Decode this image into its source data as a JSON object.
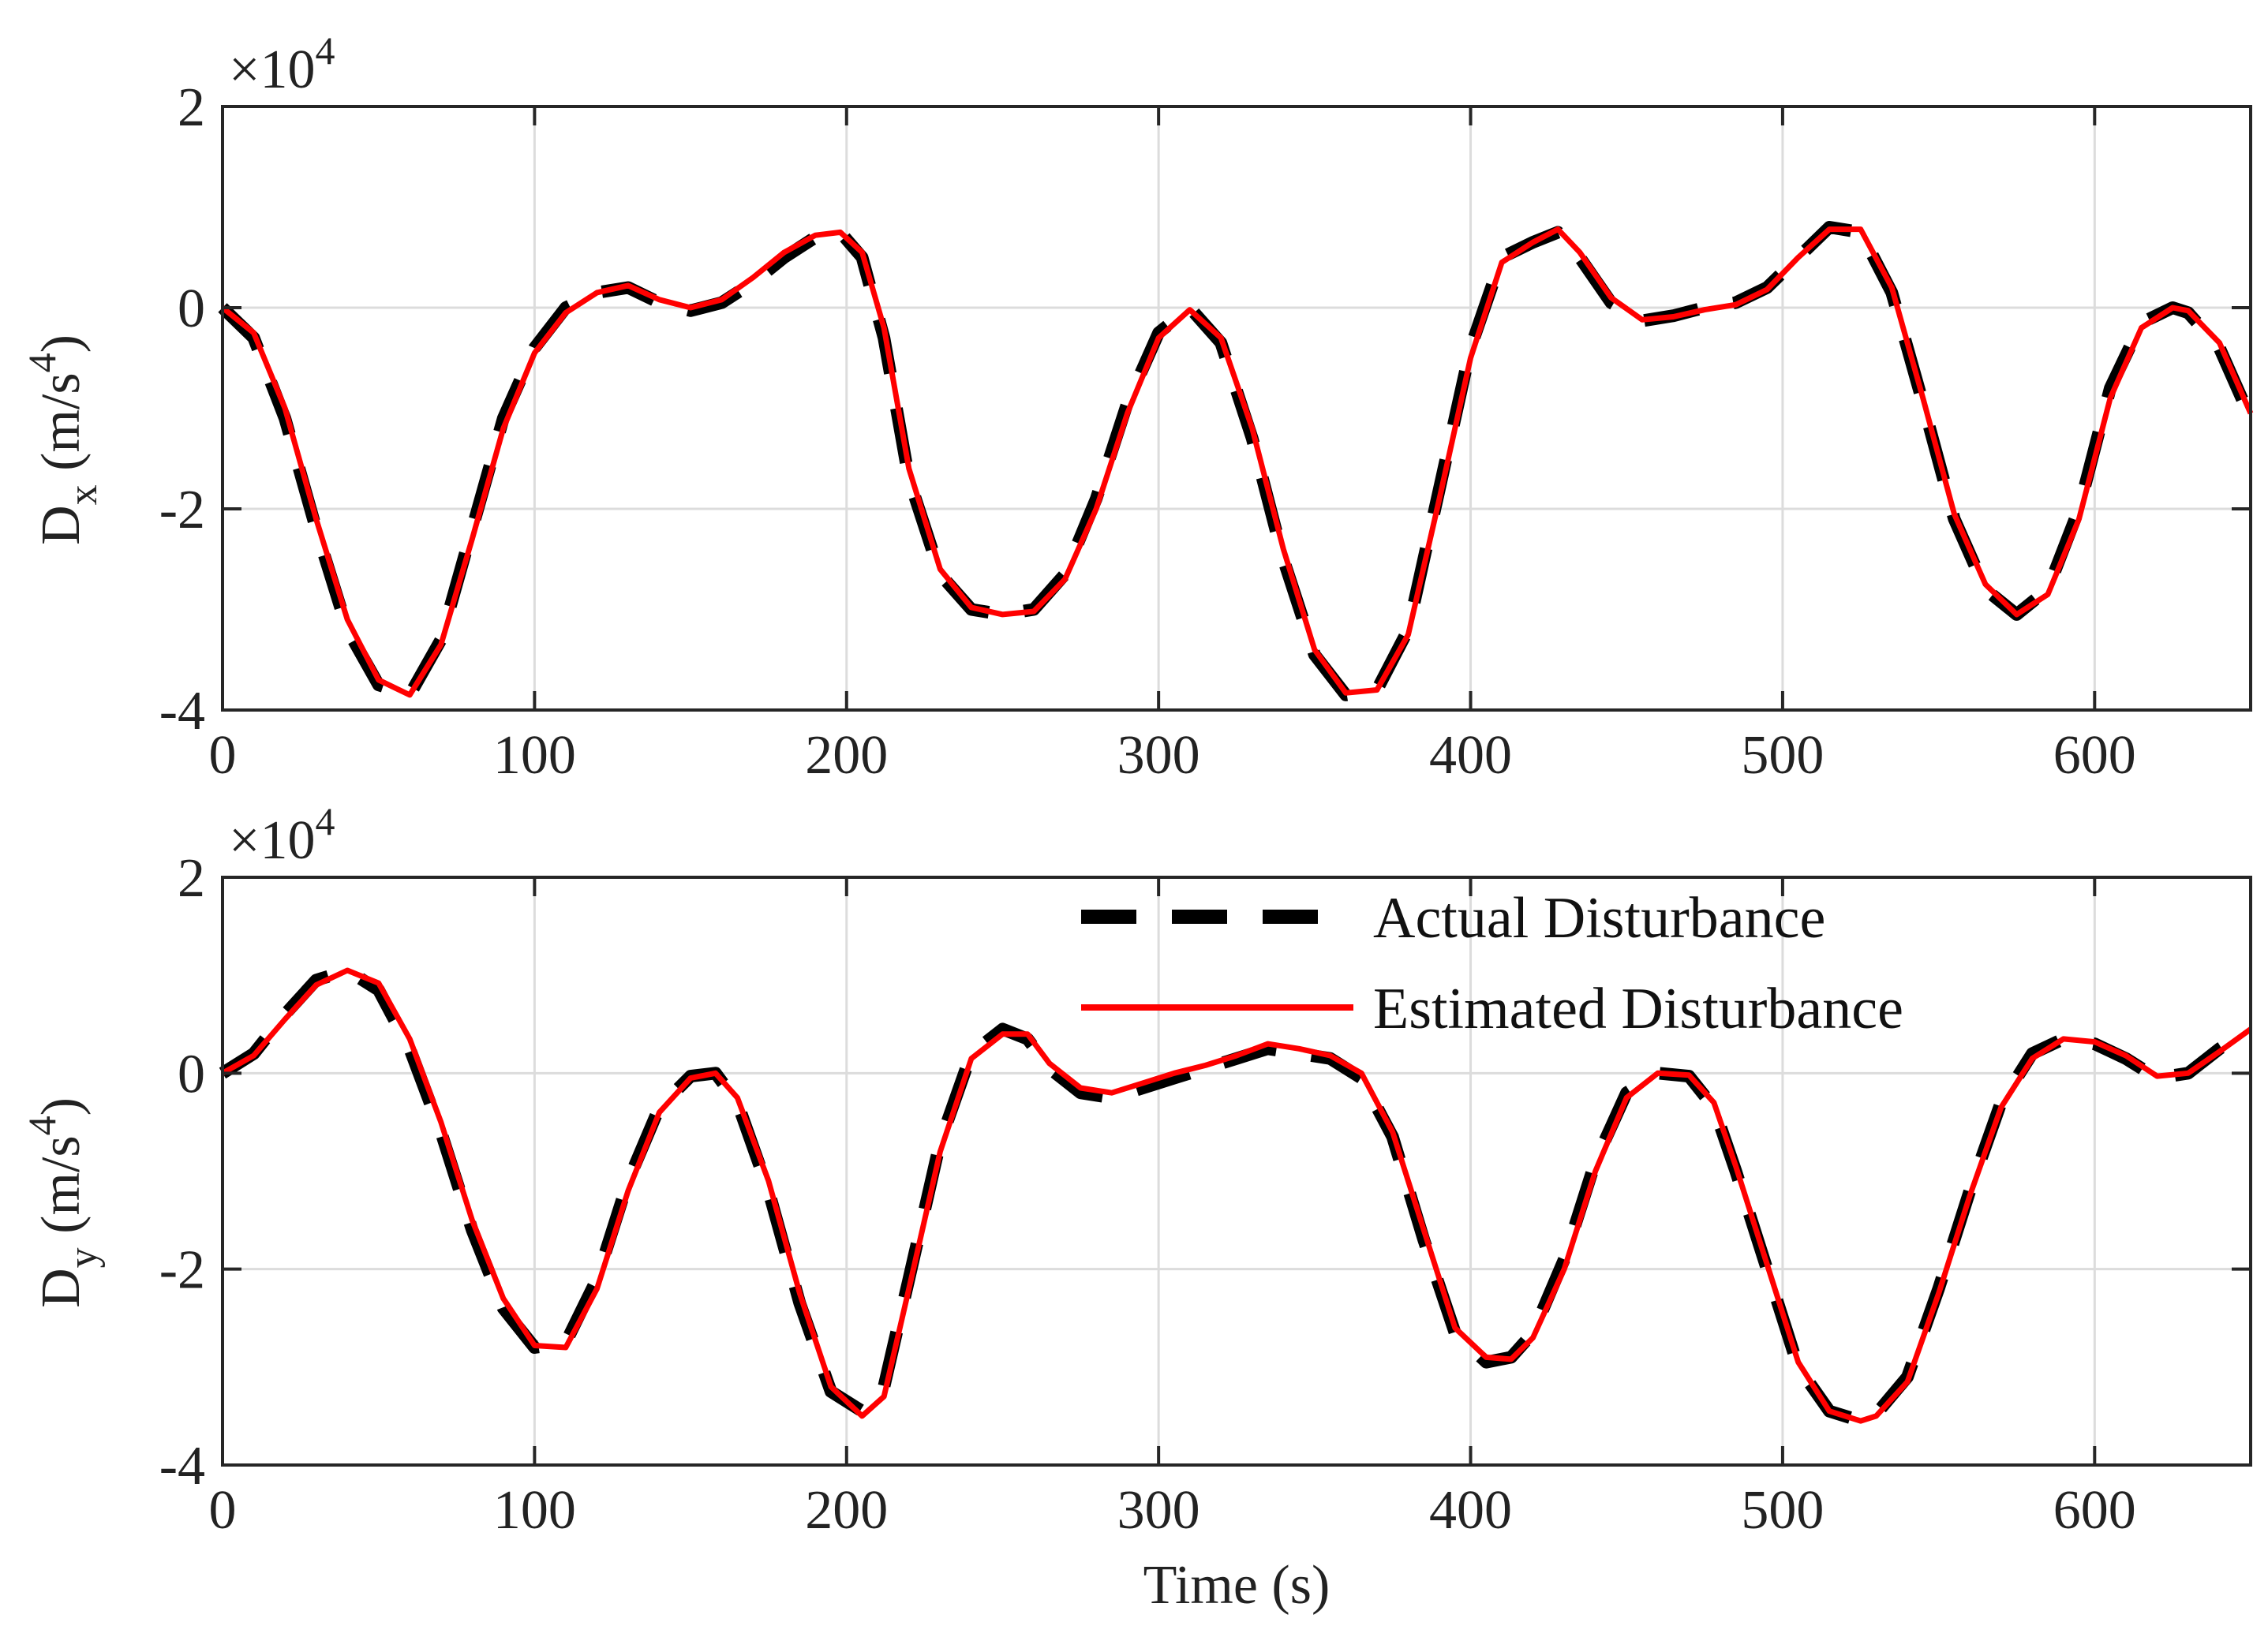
{
  "chart_data": [
    {
      "type": "line",
      "id": "dx",
      "title": "",
      "xlabel": "",
      "ylabel": {
        "main": "D",
        "sub": "x",
        "unit_prefix": " (m/s",
        "unit_sup": "4",
        "unit_suffix": ")"
      },
      "exponent": {
        "base": "×10",
        "power": "4"
      },
      "xlim": [
        0,
        650
      ],
      "ylim": [
        -40000,
        20000
      ],
      "xticks": [
        0,
        100,
        200,
        300,
        400,
        500,
        600
      ],
      "xtick_labels": [
        "0",
        "100",
        "200",
        "300",
        "400",
        "500",
        "600"
      ],
      "yticks": [
        -40000,
        -20000,
        0,
        20000
      ],
      "ytick_labels": [
        "-4",
        "-2",
        "0",
        "2"
      ],
      "grid": true,
      "series": [
        {
          "name": "Actual Disturbance",
          "style": "dashed",
          "color": "#000000",
          "x": [
            0,
            10,
            20,
            30,
            40,
            50,
            60,
            70,
            80,
            90,
            100,
            110,
            120,
            130,
            140,
            150,
            160,
            170,
            180,
            190,
            198,
            205,
            212,
            220,
            230,
            240,
            250,
            260,
            270,
            280,
            290,
            300,
            310,
            320,
            330,
            340,
            350,
            360,
            370,
            380,
            390,
            400,
            410,
            420,
            428,
            435,
            445,
            455,
            465,
            475,
            485,
            495,
            505,
            515,
            525,
            535,
            545,
            555,
            565,
            575,
            585,
            595,
            605,
            615,
            625,
            630,
            640,
            650
          ],
          "y": [
            0,
            -3000,
            -11000,
            -22000,
            -32000,
            -37500,
            -38500,
            -33000,
            -22000,
            -11000,
            -4000,
            0,
            1500,
            2000,
            500,
            -300,
            500,
            2500,
            5000,
            7000,
            7500,
            5000,
            -3000,
            -17000,
            -26500,
            -30000,
            -30500,
            -30000,
            -26500,
            -19000,
            -9500,
            -2500,
            0,
            -3500,
            -13000,
            -25000,
            -34500,
            -38500,
            -38000,
            -32000,
            -18000,
            -4000,
            5000,
            6500,
            7500,
            5000,
            500,
            -1300,
            -800,
            0,
            500,
            2000,
            5000,
            8000,
            7500,
            1500,
            -9500,
            -21000,
            -28000,
            -30500,
            -28000,
            -20000,
            -8000,
            -1500,
            0,
            -500,
            -4000,
            -11000
          ]
        },
        {
          "name": "Estimated Disturbance",
          "style": "solid",
          "color": "#ff0000",
          "x": [
            0,
            10,
            20,
            30,
            40,
            50,
            60,
            70,
            80,
            90,
            100,
            110,
            120,
            130,
            140,
            150,
            160,
            170,
            180,
            190,
            198,
            205,
            212,
            220,
            230,
            240,
            250,
            260,
            270,
            280,
            290,
            300,
            310,
            320,
            330,
            340,
            350,
            360,
            370,
            380,
            390,
            400,
            410,
            420,
            428,
            435,
            445,
            455,
            465,
            475,
            485,
            495,
            505,
            515,
            525,
            535,
            545,
            555,
            565,
            575,
            585,
            595,
            605,
            615,
            625,
            630,
            640,
            650
          ],
          "y": [
            0,
            -2500,
            -10000,
            -21000,
            -31000,
            -37000,
            -38500,
            -33500,
            -23000,
            -12000,
            -4500,
            -500,
            1500,
            2200,
            800,
            0,
            800,
            3000,
            5500,
            7200,
            7500,
            5500,
            -2000,
            -16000,
            -26000,
            -29800,
            -30500,
            -30200,
            -27000,
            -20000,
            -10500,
            -3000,
            -200,
            -3000,
            -12000,
            -24000,
            -34000,
            -38300,
            -38000,
            -32500,
            -19000,
            -5000,
            4500,
            6500,
            7800,
            5500,
            1000,
            -1200,
            -900,
            -200,
            300,
            1800,
            5000,
            7800,
            7800,
            2000,
            -9000,
            -20500,
            -27500,
            -30500,
            -28500,
            -21000,
            -9000,
            -2000,
            0,
            -300,
            -3500,
            -10500
          ]
        }
      ]
    },
    {
      "type": "line",
      "id": "dy",
      "title": "",
      "xlabel": "Time (s)",
      "ylabel": {
        "main": "D",
        "sub": "y",
        "unit_prefix": " (m/s",
        "unit_sup": "4",
        "unit_suffix": ")"
      },
      "exponent": {
        "base": "×10",
        "power": "4"
      },
      "xlim": [
        0,
        650
      ],
      "ylim": [
        -40000,
        20000
      ],
      "xticks": [
        0,
        100,
        200,
        300,
        400,
        500,
        600
      ],
      "xtick_labels": [
        "0",
        "100",
        "200",
        "300",
        "400",
        "500",
        "600"
      ],
      "yticks": [
        -40000,
        -20000,
        0,
        20000
      ],
      "ytick_labels": [
        "-4",
        "-2",
        "0",
        "2"
      ],
      "grid": true,
      "legend": {
        "position": "top-right",
        "entries": [
          "Actual Disturbance",
          "Estimated Disturbance"
        ]
      },
      "series": [
        {
          "name": "Actual Disturbance",
          "style": "dashed",
          "color": "#000000",
          "x": [
            0,
            10,
            20,
            30,
            40,
            50,
            60,
            70,
            80,
            90,
            100,
            110,
            120,
            130,
            140,
            150,
            158,
            165,
            175,
            185,
            195,
            205,
            212,
            220,
            230,
            240,
            250,
            258,
            265,
            275,
            285,
            295,
            305,
            315,
            325,
            335,
            345,
            355,
            365,
            375,
            385,
            395,
            405,
            413,
            420,
            430,
            440,
            450,
            460,
            470,
            478,
            485,
            495,
            505,
            515,
            525,
            530,
            540,
            550,
            560,
            570,
            580,
            590,
            600,
            610,
            620,
            630,
            640,
            650
          ],
          "y": [
            0,
            2000,
            6000,
            9500,
            10500,
            8500,
            2500,
            -6000,
            -16000,
            -24000,
            -28000,
            -27500,
            -21000,
            -11000,
            -3500,
            -300,
            0,
            -3000,
            -12000,
            -23500,
            -32500,
            -34500,
            -32000,
            -21000,
            -7000,
            2000,
            4500,
            3500,
            500,
            -2000,
            -2500,
            -1500,
            -500,
            500,
            1500,
            2500,
            2000,
            1500,
            -500,
            -6500,
            -17000,
            -26500,
            -29500,
            -29000,
            -26500,
            -19000,
            -9000,
            -2000,
            0,
            -300,
            -3500,
            -10000,
            -20000,
            -30000,
            -34500,
            -35500,
            -34800,
            -31000,
            -22000,
            -12000,
            -3000,
            2000,
            3500,
            3000,
            1500,
            -500,
            0,
            2500,
            4500
          ]
        },
        {
          "name": "Estimated Disturbance",
          "style": "solid",
          "color": "#ff0000",
          "x": [
            0,
            10,
            20,
            30,
            40,
            50,
            60,
            70,
            80,
            90,
            100,
            110,
            120,
            130,
            140,
            150,
            158,
            165,
            175,
            185,
            195,
            205,
            212,
            220,
            230,
            240,
            250,
            258,
            265,
            275,
            285,
            295,
            305,
            315,
            325,
            335,
            345,
            355,
            365,
            375,
            385,
            395,
            405,
            413,
            420,
            430,
            440,
            450,
            460,
            470,
            478,
            485,
            495,
            505,
            515,
            525,
            530,
            540,
            550,
            560,
            570,
            580,
            590,
            600,
            610,
            620,
            630,
            640,
            650
          ],
          "y": [
            0,
            1800,
            5500,
            9000,
            10500,
            9200,
            3500,
            -5000,
            -15000,
            -23000,
            -27800,
            -28000,
            -22000,
            -12000,
            -4000,
            -500,
            0,
            -2500,
            -11000,
            -22500,
            -32000,
            -35000,
            -33000,
            -22000,
            -8000,
            1500,
            4000,
            4000,
            1000,
            -1500,
            -2000,
            -1000,
            0,
            800,
            1800,
            3000,
            2500,
            1800,
            0,
            -6000,
            -16000,
            -26000,
            -29000,
            -29200,
            -27000,
            -20000,
            -10000,
            -2500,
            0,
            -200,
            -3000,
            -9500,
            -19500,
            -29500,
            -34500,
            -35500,
            -35000,
            -31500,
            -22500,
            -12500,
            -3500,
            1500,
            3500,
            3200,
            1800,
            -300,
            0,
            2200,
            4500
          ]
        }
      ]
    }
  ]
}
